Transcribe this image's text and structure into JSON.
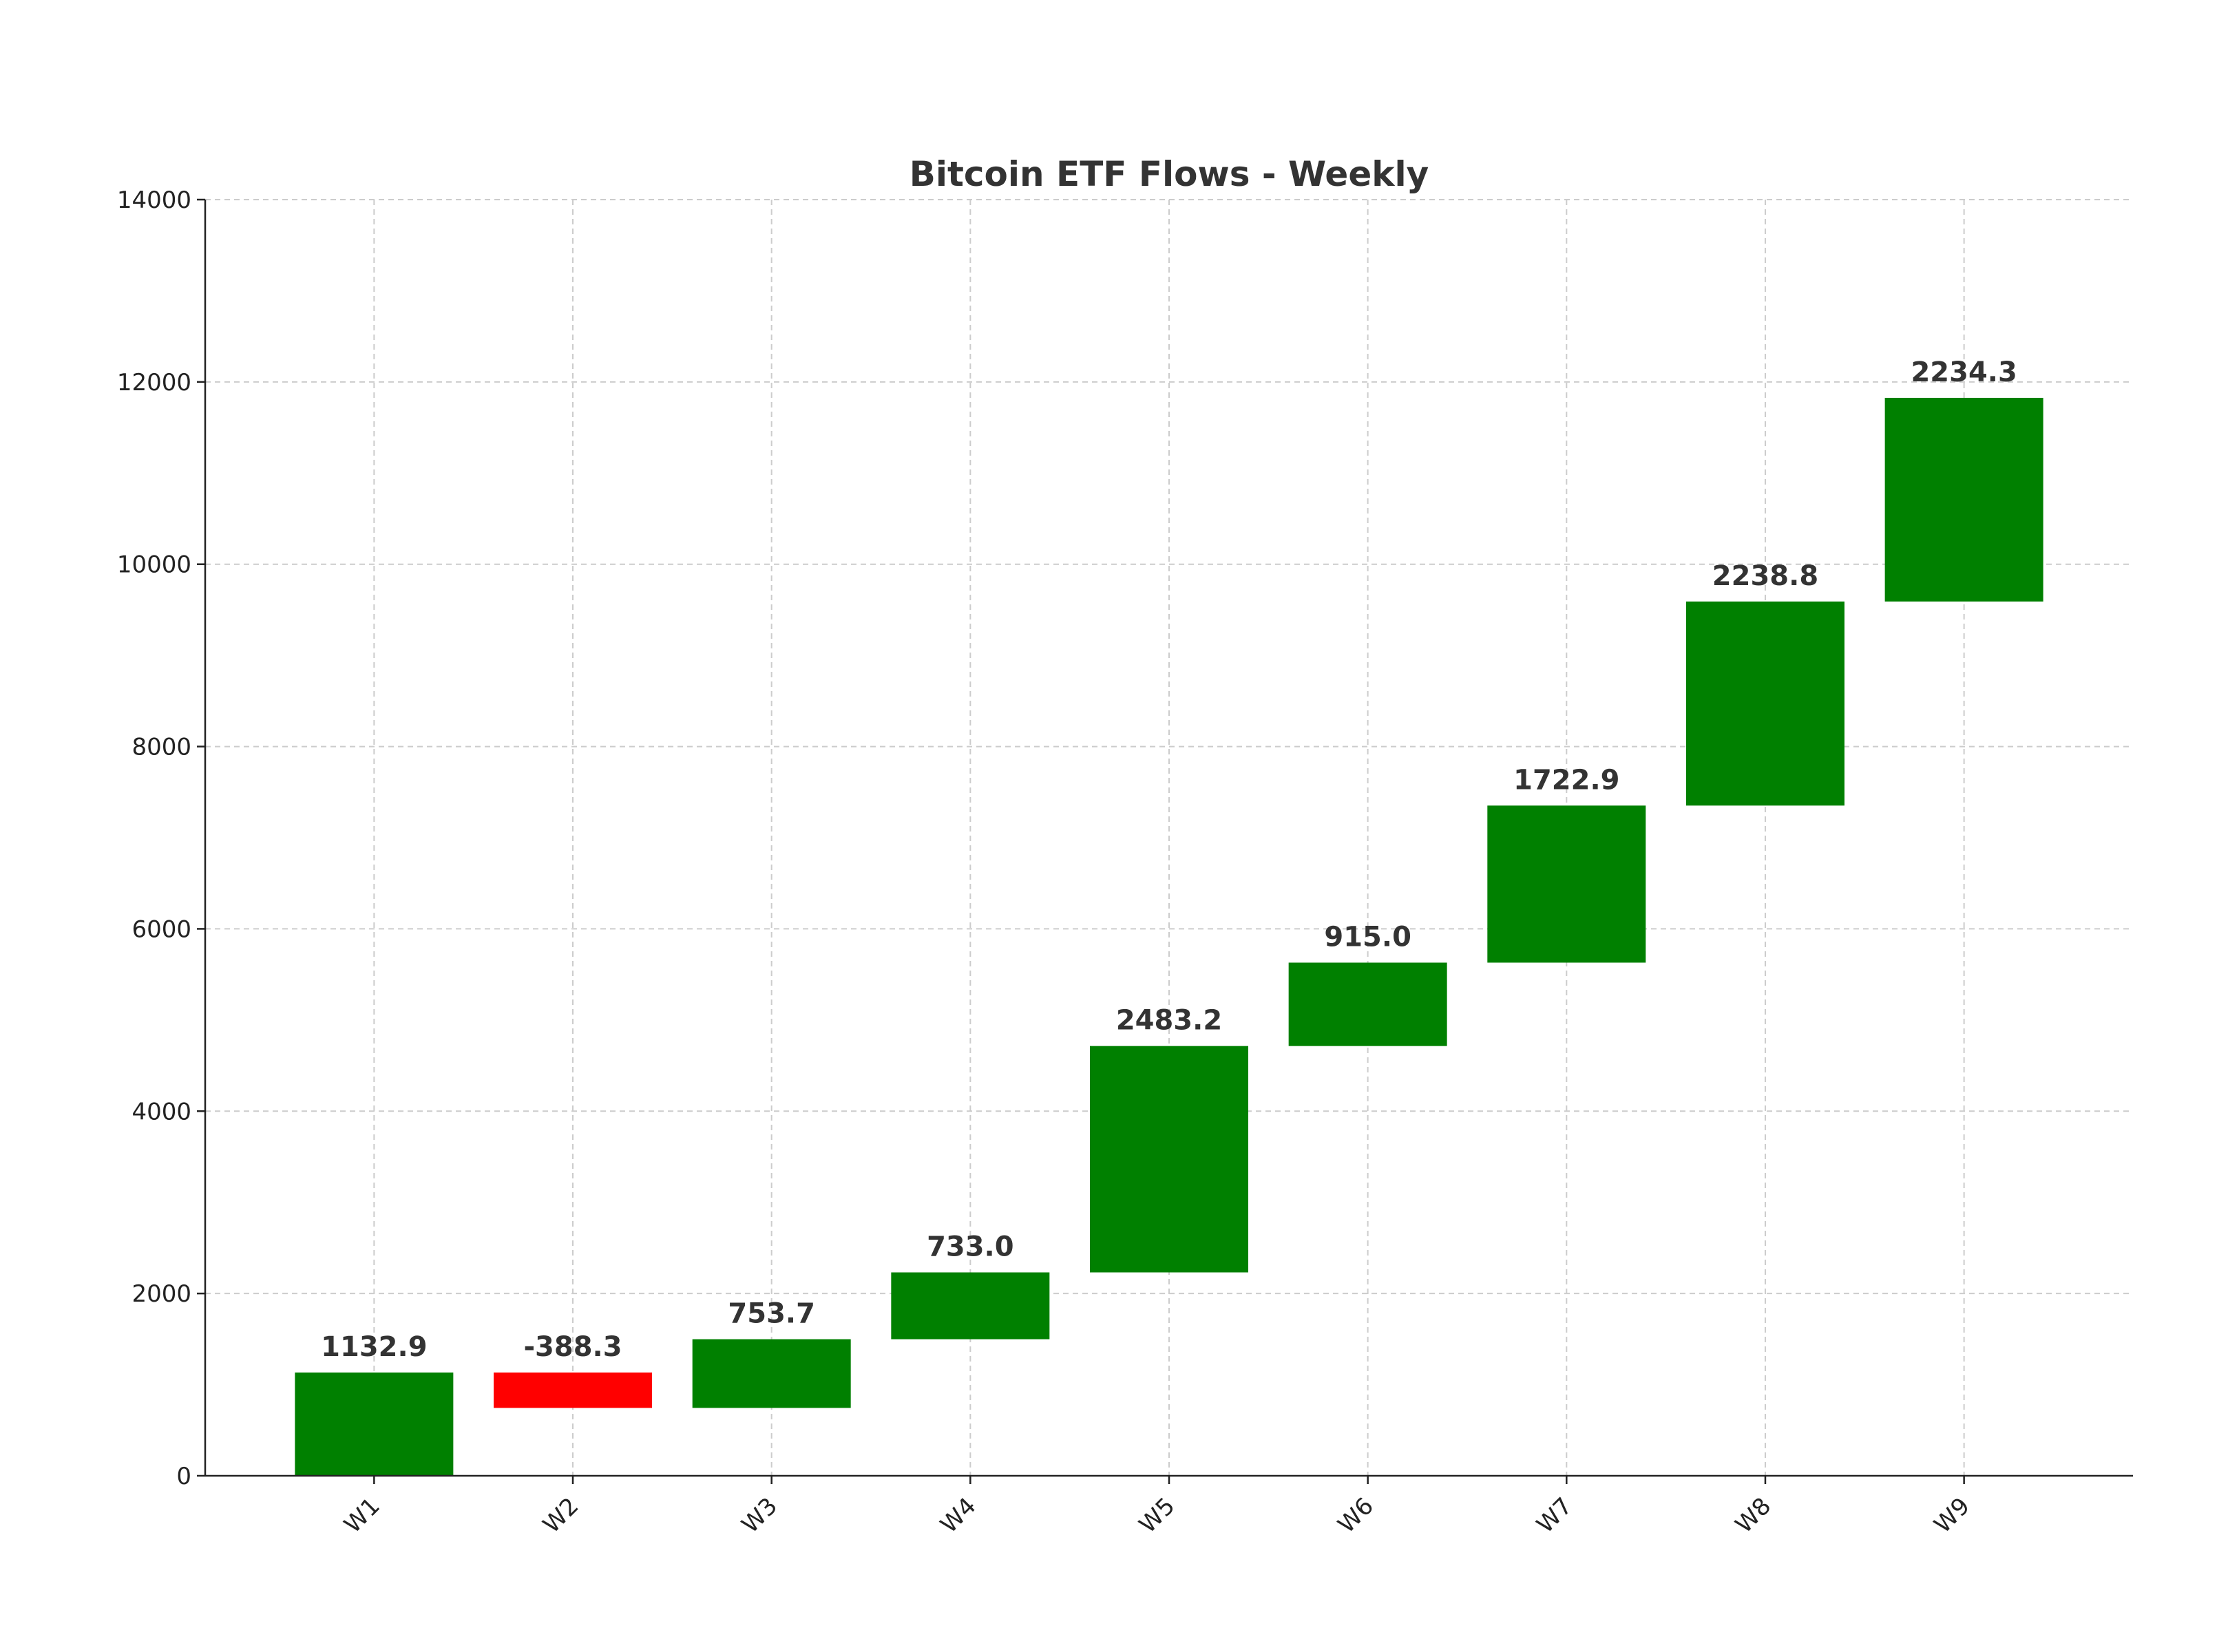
{
  "chart_data": {
    "type": "waterfall",
    "title": "Bitcoin ETF Flows - Weekly",
    "xlabel": "",
    "ylabel": "",
    "categories": [
      "W1",
      "W2",
      "W3",
      "W4",
      "W5",
      "W6",
      "W7",
      "W8",
      "W9"
    ],
    "values": [
      1132.9,
      -388.3,
      753.7,
      733.0,
      2483.2,
      915.0,
      1722.9,
      2238.8,
      2234.3
    ],
    "value_labels": [
      "1132.9",
      "-388.3",
      "753.7",
      "733.0",
      "2483.2",
      "915.0",
      "1722.9",
      "2238.8",
      "2234.3"
    ],
    "ylim": [
      0,
      14000
    ],
    "yticks": [
      0,
      2000,
      4000,
      6000,
      8000,
      10000,
      12000,
      14000
    ],
    "ytick_labels": [
      "0",
      "2000",
      "4000",
      "6000",
      "8000",
      "10000",
      "12000",
      "14000"
    ],
    "grid": true,
    "legend": "none",
    "colors": {
      "positive": "#008000",
      "negative": "#ff0000"
    }
  }
}
